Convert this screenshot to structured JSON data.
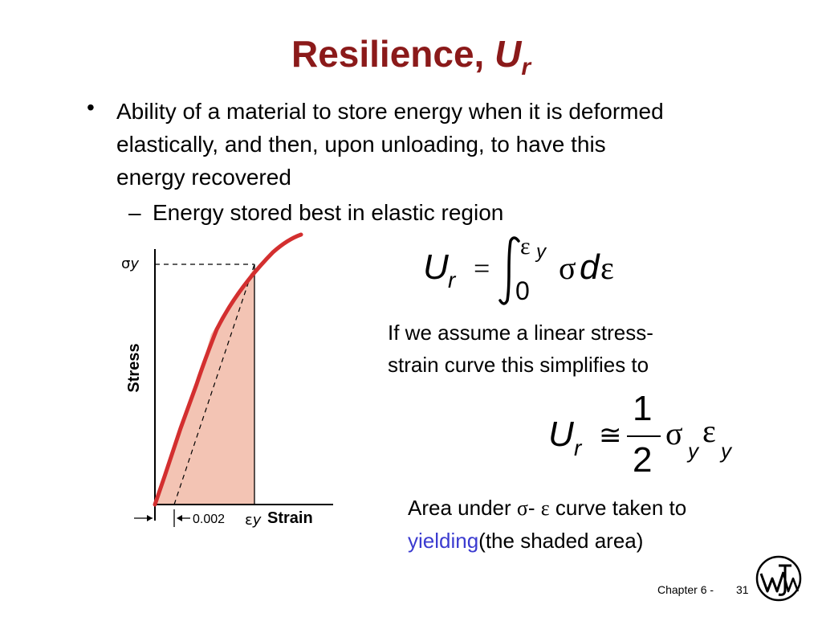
{
  "slide": {
    "title_main": "Resilience, ",
    "title_var": "U",
    "title_sub": "r",
    "bullet": "Ability of a material to store energy when it is deformed elastically, and then, upon unloading, to have this energy recovered",
    "sub_bullet": "Energy stored best in elastic region",
    "assume_text": "If we assume a linear stress-strain curve this simplifies to",
    "area_text_1": "Area under ",
    "area_sigma": "σ",
    "area_dash": "- ",
    "area_eps": "ε",
    "area_text_2": " curve taken to ",
    "area_link": "yielding",
    "area_text_3": "(the shaded area)",
    "footer_chapter": "Chapter 6 -",
    "footer_page": "31"
  },
  "eq1": {
    "lhs": "U",
    "lhs_sub": "r",
    "equals": "=",
    "upper": "ε",
    "upper_sub": "y",
    "lower": "0",
    "sigma": "σ",
    "d": "d",
    "eps": "ε"
  },
  "eq2": {
    "lhs": "U",
    "lhs_sub": "r",
    "approx": "≅",
    "num": "1",
    "den": "2",
    "sigma": "σ",
    "sigma_sub": "y",
    "eps": "ε",
    "eps_sub": "y"
  },
  "diagram": {
    "y_label": "Stress",
    "x_label": "Strain",
    "sigma_tick": "σ",
    "sigma_tick_sub": "y",
    "eps_tick": "ε",
    "eps_tick_sub": "y",
    "offset_label": "0.002",
    "curve_color": "#d32f2f",
    "shade_color": "#f3c4b4"
  },
  "colors": {
    "title": "#8b1a1a",
    "link": "#3b3bd0"
  }
}
